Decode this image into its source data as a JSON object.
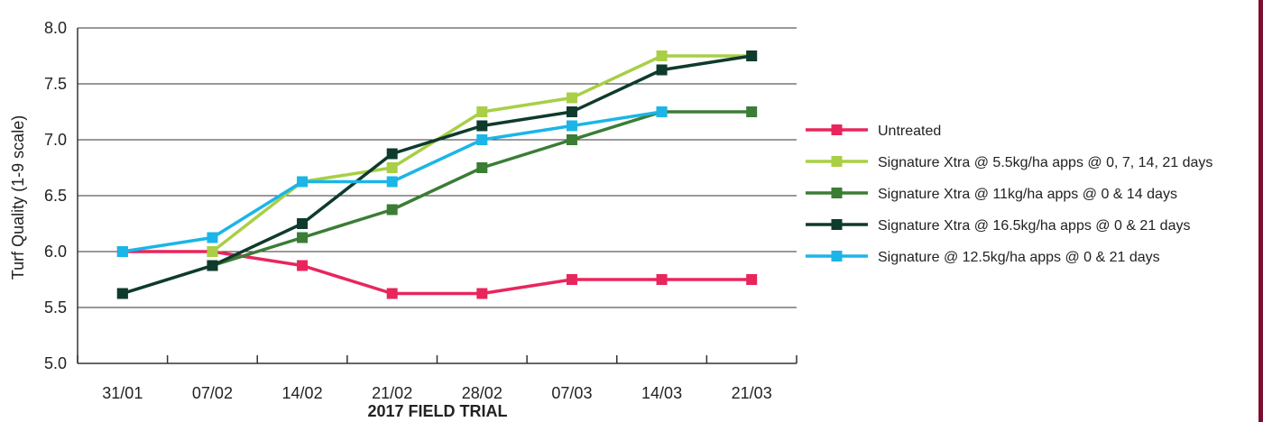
{
  "chart_data": {
    "type": "line",
    "categories": [
      "31/01",
      "07/02",
      "14/02",
      "21/02",
      "28/02",
      "07/03",
      "14/03",
      "21/03"
    ],
    "xlabel": "2017 FIELD TRIAL",
    "ylabel": "Turf Quality (1-9 scale)",
    "ylim": [
      5.0,
      8.0
    ],
    "yticks": [
      "5.0",
      "5.5",
      "6.0",
      "6.5",
      "7.0",
      "7.5",
      "8.0"
    ],
    "grid": true,
    "legend_position": "right",
    "series": [
      {
        "name": "Untreated",
        "color": "#e8265c",
        "values": [
          6.0,
          6.0,
          5.875,
          5.625,
          5.625,
          5.75,
          5.75,
          5.75
        ]
      },
      {
        "name": "Signature Xtra @ 5.5kg/ha apps @ 0, 7, 14, 21 days",
        "color": "#a8cf45",
        "values": [
          null,
          6.0,
          6.625,
          6.75,
          7.25,
          7.375,
          7.75,
          7.75
        ]
      },
      {
        "name": "Signature Xtra @ 11kg/ha apps @ 0 & 14 days",
        "color": "#3b7d35",
        "values": [
          5.625,
          5.875,
          6.125,
          6.375,
          6.75,
          7.0,
          7.25,
          7.25
        ]
      },
      {
        "name": "Signature Xtra @ 16.5kg/ha apps @ 0 & 21 days",
        "color": "#0e3b2c",
        "values": [
          5.625,
          5.875,
          6.25,
          6.875,
          7.125,
          7.25,
          7.625,
          7.75
        ]
      },
      {
        "name": "Signature @ 12.5kg/ha apps @ 0 & 21 days",
        "color": "#1bb5e8",
        "values": [
          6.0,
          6.125,
          6.625,
          6.625,
          7.0,
          7.125,
          7.25,
          null
        ]
      }
    ]
  },
  "colors": {
    "grid": "#333333",
    "axis_text": "#222222",
    "right_border": "#7a1030"
  }
}
